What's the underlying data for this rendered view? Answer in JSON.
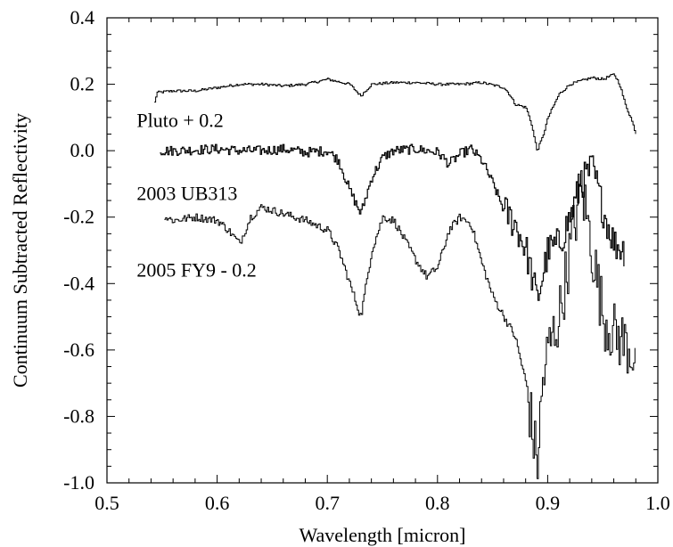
{
  "chart_data": {
    "type": "line",
    "title": "",
    "xlabel": "Wavelength [micron]",
    "ylabel": "Continuum Subtracted Reflectivity",
    "xlim": [
      0.5,
      1.0
    ],
    "ylim": [
      -1.0,
      0.4
    ],
    "x_ticks": [
      "0.5",
      "0.6",
      "0.7",
      "0.8",
      "0.9",
      "1.0"
    ],
    "y_ticks": [
      "-1.0",
      "-0.8",
      "-0.6",
      "-0.4",
      "-0.2",
      "0.0",
      "0.2",
      "0.4"
    ],
    "grid": false,
    "legend": "none",
    "series": [
      {
        "name": "Pluto + 0.2",
        "label_anchor": [
          0.527,
          0.09
        ],
        "noise": 0.004,
        "points": [
          [
            0.543,
            0.145
          ],
          [
            0.545,
            0.175
          ],
          [
            0.56,
            0.18
          ],
          [
            0.58,
            0.18
          ],
          [
            0.6,
            0.19
          ],
          [
            0.62,
            0.2
          ],
          [
            0.64,
            0.2
          ],
          [
            0.66,
            0.195
          ],
          [
            0.68,
            0.2
          ],
          [
            0.7,
            0.215
          ],
          [
            0.72,
            0.2
          ],
          [
            0.73,
            0.165
          ],
          [
            0.74,
            0.2
          ],
          [
            0.76,
            0.205
          ],
          [
            0.78,
            0.205
          ],
          [
            0.8,
            0.2
          ],
          [
            0.82,
            0.2
          ],
          [
            0.84,
            0.205
          ],
          [
            0.86,
            0.19
          ],
          [
            0.865,
            0.17
          ],
          [
            0.87,
            0.14
          ],
          [
            0.875,
            0.135
          ],
          [
            0.88,
            0.13
          ],
          [
            0.885,
            0.08
          ],
          [
            0.89,
            0.0
          ],
          [
            0.895,
            0.04
          ],
          [
            0.9,
            0.1
          ],
          [
            0.91,
            0.17
          ],
          [
            0.92,
            0.2
          ],
          [
            0.93,
            0.21
          ],
          [
            0.94,
            0.22
          ],
          [
            0.95,
            0.215
          ],
          [
            0.96,
            0.23
          ],
          [
            0.965,
            0.2
          ],
          [
            0.97,
            0.14
          ],
          [
            0.975,
            0.1
          ],
          [
            0.98,
            0.05
          ]
        ]
      },
      {
        "name": "2003 UB313",
        "label_anchor": [
          0.527,
          -0.13
        ],
        "noise": 0.015,
        "points": [
          [
            0.548,
            0.0
          ],
          [
            0.56,
            0.0
          ],
          [
            0.6,
            0.005
          ],
          [
            0.62,
            0.0
          ],
          [
            0.64,
            0.0
          ],
          [
            0.66,
            0.005
          ],
          [
            0.68,
            -0.005
          ],
          [
            0.7,
            0.0
          ],
          [
            0.71,
            -0.03
          ],
          [
            0.72,
            -0.12
          ],
          [
            0.73,
            -0.19
          ],
          [
            0.74,
            -0.08
          ],
          [
            0.75,
            -0.02
          ],
          [
            0.76,
            0.0
          ],
          [
            0.78,
            0.005
          ],
          [
            0.8,
            -0.005
          ],
          [
            0.81,
            -0.04
          ],
          [
            0.82,
            -0.01
          ],
          [
            0.83,
            0.005
          ],
          [
            0.84,
            -0.03
          ],
          [
            0.85,
            -0.1
          ],
          [
            0.86,
            -0.18
          ],
          [
            0.87,
            -0.22
          ],
          [
            0.88,
            -0.3
          ],
          [
            0.89,
            -0.45
          ],
          [
            0.9,
            -0.3
          ],
          [
            0.91,
            -0.28
          ],
          [
            0.92,
            -0.2
          ],
          [
            0.93,
            -0.1
          ],
          [
            0.94,
            -0.05
          ],
          [
            0.95,
            -0.18
          ],
          [
            0.96,
            -0.28
          ],
          [
            0.97,
            -0.3
          ]
        ]
      },
      {
        "name": "2005 FY9 - 0.2",
        "label_anchor": [
          0.527,
          -0.36
        ],
        "noise": 0.012,
        "points": [
          [
            0.552,
            -0.2
          ],
          [
            0.56,
            -0.21
          ],
          [
            0.58,
            -0.2
          ],
          [
            0.6,
            -0.21
          ],
          [
            0.61,
            -0.24
          ],
          [
            0.62,
            -0.28
          ],
          [
            0.63,
            -0.2
          ],
          [
            0.64,
            -0.17
          ],
          [
            0.66,
            -0.19
          ],
          [
            0.68,
            -0.21
          ],
          [
            0.7,
            -0.24
          ],
          [
            0.71,
            -0.3
          ],
          [
            0.72,
            -0.4
          ],
          [
            0.73,
            -0.5
          ],
          [
            0.74,
            -0.3
          ],
          [
            0.75,
            -0.2
          ],
          [
            0.76,
            -0.21
          ],
          [
            0.78,
            -0.33
          ],
          [
            0.79,
            -0.38
          ],
          [
            0.8,
            -0.35
          ],
          [
            0.81,
            -0.24
          ],
          [
            0.82,
            -0.2
          ],
          [
            0.83,
            -0.22
          ],
          [
            0.84,
            -0.34
          ],
          [
            0.85,
            -0.44
          ],
          [
            0.86,
            -0.5
          ],
          [
            0.87,
            -0.56
          ],
          [
            0.88,
            -0.7
          ],
          [
            0.89,
            -0.95
          ],
          [
            0.895,
            -0.7
          ],
          [
            0.9,
            -0.6
          ],
          [
            0.91,
            -0.5
          ],
          [
            0.92,
            -0.3
          ],
          [
            0.93,
            -0.1
          ],
          [
            0.94,
            -0.3
          ],
          [
            0.95,
            -0.5
          ],
          [
            0.96,
            -0.55
          ],
          [
            0.97,
            -0.58
          ],
          [
            0.98,
            -0.62
          ]
        ]
      }
    ]
  }
}
